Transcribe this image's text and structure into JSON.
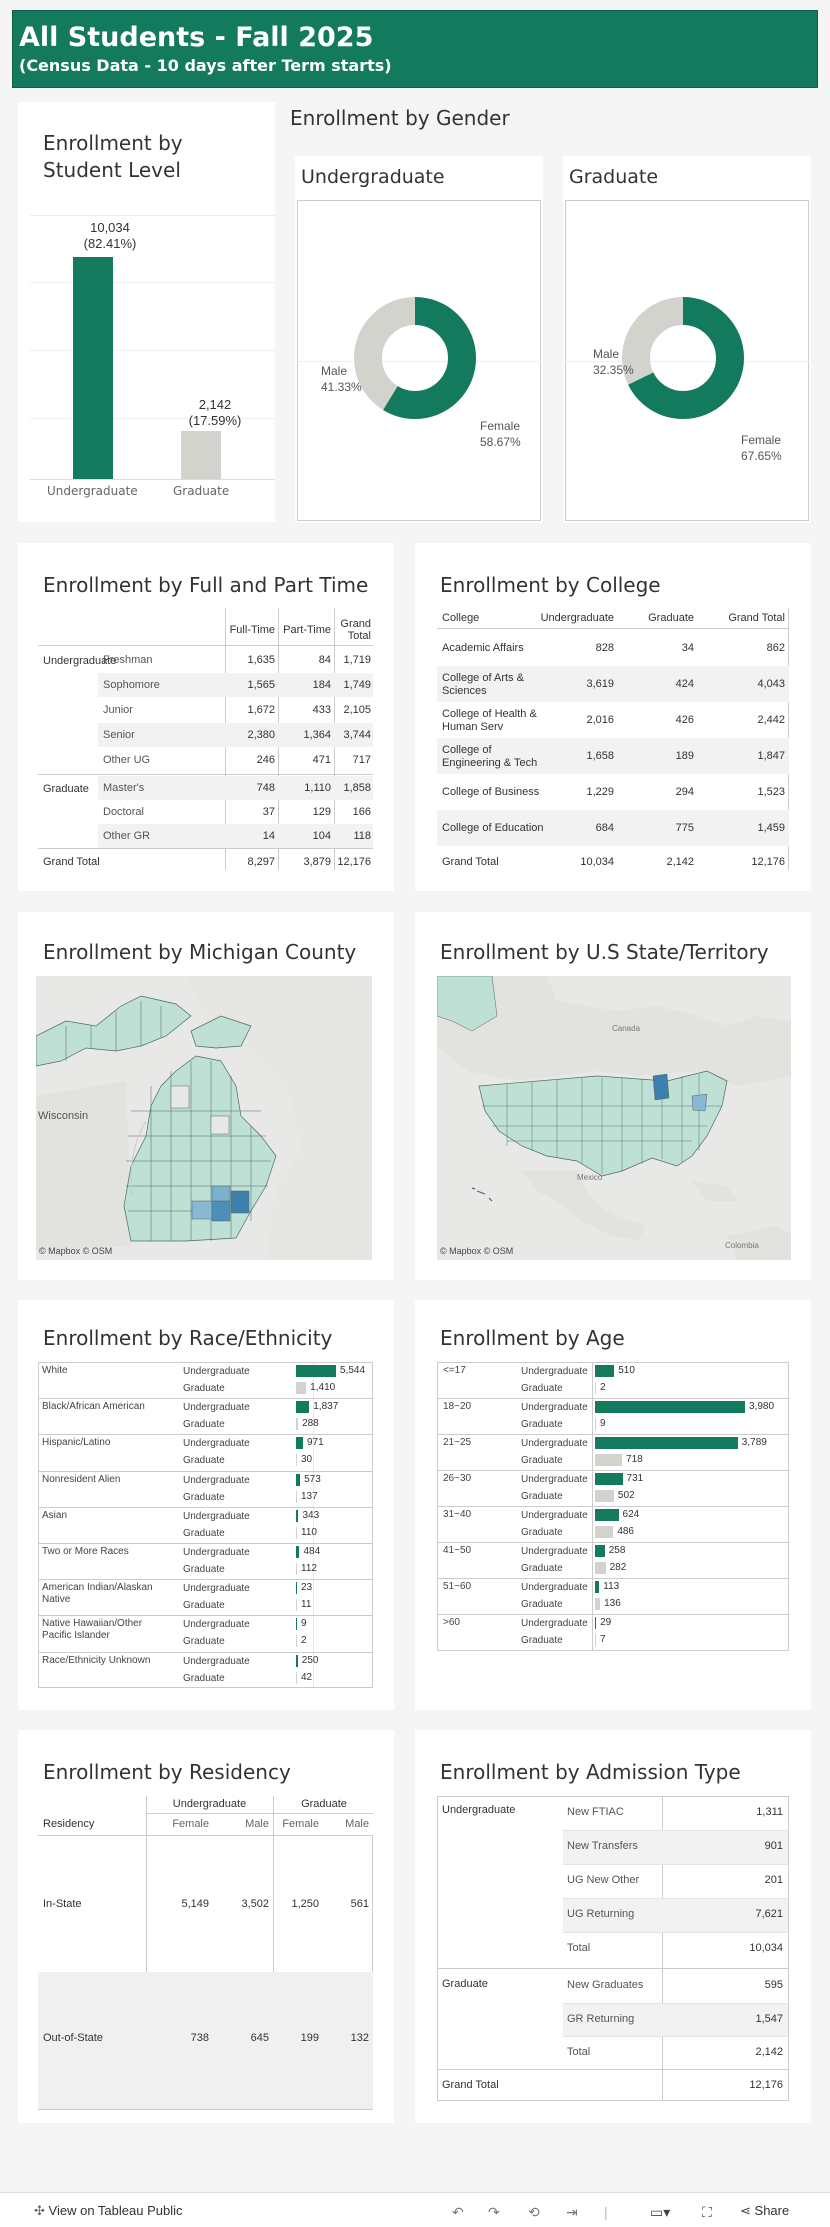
{
  "banner": {
    "title": "All Students - Fall 2025",
    "subtitle": "(Census Data - 10 days after Term starts)"
  },
  "level": {
    "title_line1": "Enrollment by",
    "title_line2": "Student Level",
    "ug_value": "10,034",
    "ug_pct": "(82.41%)",
    "gr_value": "2,142",
    "gr_pct": "(17.59%)",
    "ug_label": "Undergraduate",
    "gr_label": "Graduate"
  },
  "chart_data": [
    {
      "type": "bar",
      "title": "Enrollment by Student Level",
      "categories": [
        "Undergraduate",
        "Graduate"
      ],
      "values": [
        10034,
        2142
      ],
      "ylim": [
        0,
        12000
      ]
    },
    {
      "type": "pie",
      "title": "Undergraduate",
      "labels": [
        "Male",
        "Female"
      ],
      "values": [
        41.33,
        58.67
      ]
    },
    {
      "type": "pie",
      "title": "Graduate",
      "labels": [
        "Male",
        "Female"
      ],
      "values": [
        32.35,
        67.65
      ]
    },
    {
      "type": "bar",
      "title": "Enrollment by Race/Ethnicity",
      "categories": [
        "White UG",
        "White GR",
        "Black UG",
        "Black GR",
        "Hispanic UG",
        "Hispanic GR",
        "Nonresident UG",
        "Nonresident GR",
        "Asian UG",
        "Asian GR",
        "Two+ UG",
        "Two+ GR",
        "AmInd UG",
        "AmInd GR",
        "NatHaw UG",
        "NatHaw GR",
        "Unknown UG",
        "Unknown GR"
      ],
      "values": [
        5544,
        1410,
        1837,
        288,
        971,
        30,
        573,
        137,
        343,
        110,
        484,
        112,
        23,
        11,
        9,
        2,
        250,
        42
      ]
    },
    {
      "type": "bar",
      "title": "Enrollment by Age",
      "categories": [
        "<=17 UG",
        "<=17 GR",
        "18~20 UG",
        "18~20 GR",
        "21~25 UG",
        "21~25 GR",
        "26~30 UG",
        "26~30 GR",
        "31~40 UG",
        "31~40 GR",
        "41~50 UG",
        "41~50 GR",
        "51~60 UG",
        "51~60 GR",
        ">60 UG",
        ">60 GR"
      ],
      "values": [
        510,
        2,
        3980,
        9,
        3789,
        718,
        731,
        502,
        624,
        486,
        258,
        282,
        113,
        136,
        29,
        7
      ]
    }
  ],
  "gender": {
    "title": "Enrollment by Gender",
    "ug_title": "Undergraduate",
    "gr_title": "Graduate",
    "male": "Male",
    "female": "Female",
    "ug_male": "41.33%",
    "ug_female": "58.67%",
    "gr_male": "32.35%",
    "gr_female": "67.65%"
  },
  "fullpart": {
    "title": "Enrollment by Full and Part Time",
    "h_ft": "Full-Time",
    "h_pt": "Part-Time",
    "h_gt1": "Grand",
    "h_gt2": "Total",
    "ug": "Undergraduate",
    "gr": "Graduate",
    "total_label": "Grand Total",
    "rows": [
      {
        "sub": "Freshman",
        "ft": "1,635",
        "pt": "84",
        "gt": "1,719"
      },
      {
        "sub": "Sophomore",
        "ft": "1,565",
        "pt": "184",
        "gt": "1,749"
      },
      {
        "sub": "Junior",
        "ft": "1,672",
        "pt": "433",
        "gt": "2,105"
      },
      {
        "sub": "Senior",
        "ft": "2,380",
        "pt": "1,364",
        "gt": "3,744"
      },
      {
        "sub": "Other UG",
        "ft": "246",
        "pt": "471",
        "gt": "717"
      },
      {
        "sub": "Master's",
        "ft": "748",
        "pt": "1,110",
        "gt": "1,858"
      },
      {
        "sub": "Doctoral",
        "ft": "37",
        "pt": "129",
        "gt": "166"
      },
      {
        "sub": "Other GR",
        "ft": "14",
        "pt": "104",
        "gt": "118"
      }
    ],
    "total": {
      "ft": "8,297",
      "pt": "3,879",
      "gt": "12,176"
    }
  },
  "college": {
    "title": "Enrollment by College",
    "h_college": "College",
    "h_ug": "Undergraduate",
    "h_gr": "Graduate",
    "h_gt": "Grand Total",
    "rows": [
      {
        "l1": "Academic Affairs",
        "l2": "",
        "ug": "828",
        "gr": "34",
        "gt": "862"
      },
      {
        "l1": "College of Arts &",
        "l2": "Sciences",
        "ug": "3,619",
        "gr": "424",
        "gt": "4,043"
      },
      {
        "l1": "College of Health &",
        "l2": "Human Serv",
        "ug": "2,016",
        "gr": "426",
        "gt": "2,442"
      },
      {
        "l1": "College of",
        "l2": "Engineering & Tech",
        "ug": "1,658",
        "gr": "189",
        "gt": "1,847"
      },
      {
        "l1": "College of Business",
        "l2": "",
        "ug": "1,229",
        "gr": "294",
        "gt": "1,523"
      },
      {
        "l1": "College of Education",
        "l2": "",
        "ug": "684",
        "gr": "775",
        "gt": "1,459"
      }
    ],
    "total": {
      "label": "Grand Total",
      "ug": "10,034",
      "gr": "2,142",
      "gt": "12,176"
    }
  },
  "county": {
    "title": "Enrollment by Michigan County",
    "wisconsin": "Wisconsin",
    "credit": "© Mapbox  © OSM"
  },
  "state": {
    "title": "Enrollment by U.S State/Territory",
    "canada": "Canada",
    "mexico": "Mexico",
    "colombia": "Colombia",
    "credit": "© Mapbox  © OSM"
  },
  "race": {
    "title": "Enrollment by Race/Ethnicity",
    "ug": "Undergraduate",
    "gr": "Graduate",
    "rows": [
      {
        "l1": "White",
        "l2": "",
        "ug": 5544,
        "gr": 1410,
        "ugt": "5,544",
        "grt": "1,410"
      },
      {
        "l1": "Black/African American",
        "l2": "",
        "ug": 1837,
        "gr": 288,
        "ugt": "1,837",
        "grt": "288"
      },
      {
        "l1": "Hispanic/Latino",
        "l2": "",
        "ug": 971,
        "gr": 30,
        "ugt": "971",
        "grt": "30"
      },
      {
        "l1": "Nonresident Alien",
        "l2": "",
        "ug": 573,
        "gr": 137,
        "ugt": "573",
        "grt": "137"
      },
      {
        "l1": "Asian",
        "l2": "",
        "ug": 343,
        "gr": 110,
        "ugt": "343",
        "grt": "110"
      },
      {
        "l1": "Two or More Races",
        "l2": "",
        "ug": 484,
        "gr": 112,
        "ugt": "484",
        "grt": "112"
      },
      {
        "l1": "American Indian/Alaskan",
        "l2": "Native",
        "ug": 23,
        "gr": 11,
        "ugt": "23",
        "grt": "11"
      },
      {
        "l1": "Native Hawaiian/Other",
        "l2": "Pacific Islander",
        "ug": 9,
        "gr": 2,
        "ugt": "9",
        "grt": "2"
      },
      {
        "l1": "Race/Ethnicity Unknown",
        "l2": "",
        "ug": 250,
        "gr": 42,
        "ugt": "250",
        "grt": "42"
      }
    ]
  },
  "age": {
    "title": "Enrollment by Age",
    "ug": "Undergraduate",
    "gr": "Graduate",
    "rows": [
      {
        "l": "<=17",
        "ug": 510,
        "gr": 2,
        "ugt": "510",
        "grt": "2"
      },
      {
        "l": "18~20",
        "ug": 3980,
        "gr": 9,
        "ugt": "3,980",
        "grt": "9"
      },
      {
        "l": "21~25",
        "ug": 3789,
        "gr": 718,
        "ugt": "3,789",
        "grt": "718"
      },
      {
        "l": "26~30",
        "ug": 731,
        "gr": 502,
        "ugt": "731",
        "grt": "502"
      },
      {
        "l": "31~40",
        "ug": 624,
        "gr": 486,
        "ugt": "624",
        "grt": "486"
      },
      {
        "l": "41~50",
        "ug": 258,
        "gr": 282,
        "ugt": "258",
        "grt": "282"
      },
      {
        "l": "51~60",
        "ug": 113,
        "gr": 136,
        "ugt": "113",
        "grt": "136"
      },
      {
        "l": ">60",
        "ug": 29,
        "gr": 7,
        "ugt": "29",
        "grt": "7"
      }
    ]
  },
  "residency": {
    "title": "Enrollment by Residency",
    "h_ug": "Undergraduate",
    "h_gr": "Graduate",
    "h_res": "Residency",
    "female": "Female",
    "male": "Male",
    "rows": [
      {
        "l": "In-State",
        "ugf": "5,149",
        "ugm": "3,502",
        "grf": "1,250",
        "grm": "561"
      },
      {
        "l": "Out-of-State",
        "ugf": "738",
        "ugm": "645",
        "grf": "199",
        "grm": "132"
      }
    ]
  },
  "admission": {
    "title": "Enrollment by Admission Type",
    "ug": "Undergraduate",
    "gr": "Graduate",
    "gt_label": "Grand Total",
    "gt": "12,176",
    "ug_rows": [
      {
        "l": "New FTIAC",
        "v": "1,311"
      },
      {
        "l": "New Transfers",
        "v": "901"
      },
      {
        "l": "UG New Other",
        "v": "201"
      },
      {
        "l": "UG Returning",
        "v": "7,621"
      },
      {
        "l": "Total",
        "v": "10,034"
      }
    ],
    "gr_rows": [
      {
        "l": "New Graduates",
        "v": "595"
      },
      {
        "l": "GR Returning",
        "v": "1,547"
      },
      {
        "l": "Total",
        "v": "2,142"
      }
    ]
  },
  "footer": {
    "view": "View on Tableau Public",
    "share": "Share"
  },
  "colors": {
    "green": "#137a5e",
    "gray": "#d3d3ce",
    "map_fill": "#bfe0d4",
    "map_dark": "#4c8fb8"
  }
}
